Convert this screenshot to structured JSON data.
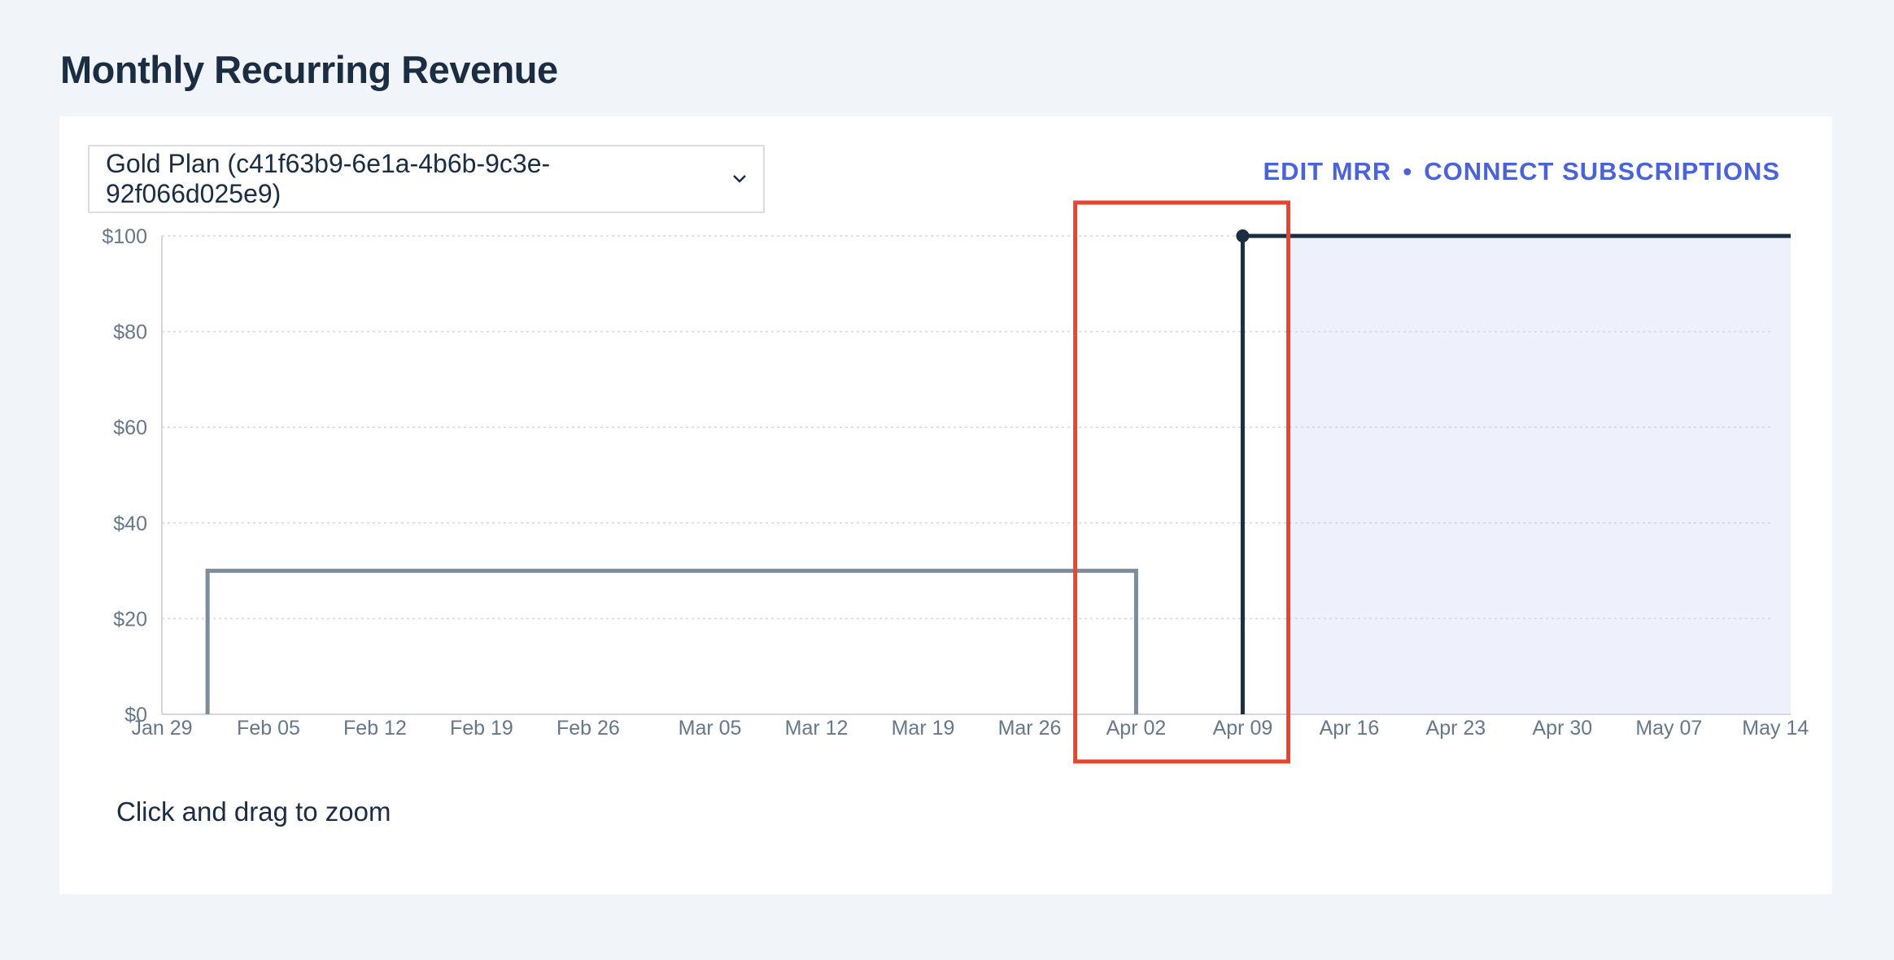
{
  "page": {
    "title": "Monthly Recurring Revenue"
  },
  "controls": {
    "plan_select_value": "Gold Plan (c41f63b9-6e1a-4b6b-9c3e-92f066d025e9)",
    "edit_mrr_label": "EDIT MRR",
    "separator": "•",
    "connect_label": "CONNECT SUBSCRIPTIONS",
    "hint": "Click and drag to zoom"
  },
  "colors": {
    "accent": "#4a63d8",
    "current_series": "#1b2d42",
    "previous_series": "#7c8c9a",
    "forecast_fill": "#eef1fc",
    "highlight_box": "#e8452c",
    "grid": "#d4d8de"
  },
  "chart_data": {
    "type": "line",
    "title": "",
    "xlabel": "",
    "ylabel": "",
    "x_ticks": [
      "Jan 29",
      "Feb 05",
      "Feb 12",
      "Feb 19",
      "Feb 26",
      "Mar 05",
      "Mar 12",
      "Mar 19",
      "Mar 26",
      "Apr 02",
      "Apr 09",
      "Apr 16",
      "Apr 23",
      "Apr 30",
      "May 07",
      "May 14"
    ],
    "y_ticks": [
      "$0",
      "$20",
      "$40",
      "$60",
      "$80",
      "$100"
    ],
    "ylim": [
      0,
      100
    ],
    "xlim": [
      "Jan 29",
      "May 15"
    ],
    "grid": true,
    "grid_style": "dotted-horizontal",
    "step": true,
    "series": [
      {
        "points": [
          [
            "Feb 01",
            0
          ],
          [
            "Feb 01",
            30
          ],
          [
            "Apr 02",
            30
          ],
          [
            "Apr 02",
            0
          ]
        ]
      },
      {
        "points": [
          [
            "Apr 09",
            0
          ],
          [
            "Apr 09",
            100
          ],
          [
            "May 15",
            100
          ]
        ],
        "marker_at": [
          "Apr 09",
          100
        ]
      }
    ],
    "shaded_region": {
      "from": "Apr 12",
      "to": "May 15"
    },
    "highlight_box": {
      "from": "Mar 29",
      "to": "Apr 12"
    }
  }
}
